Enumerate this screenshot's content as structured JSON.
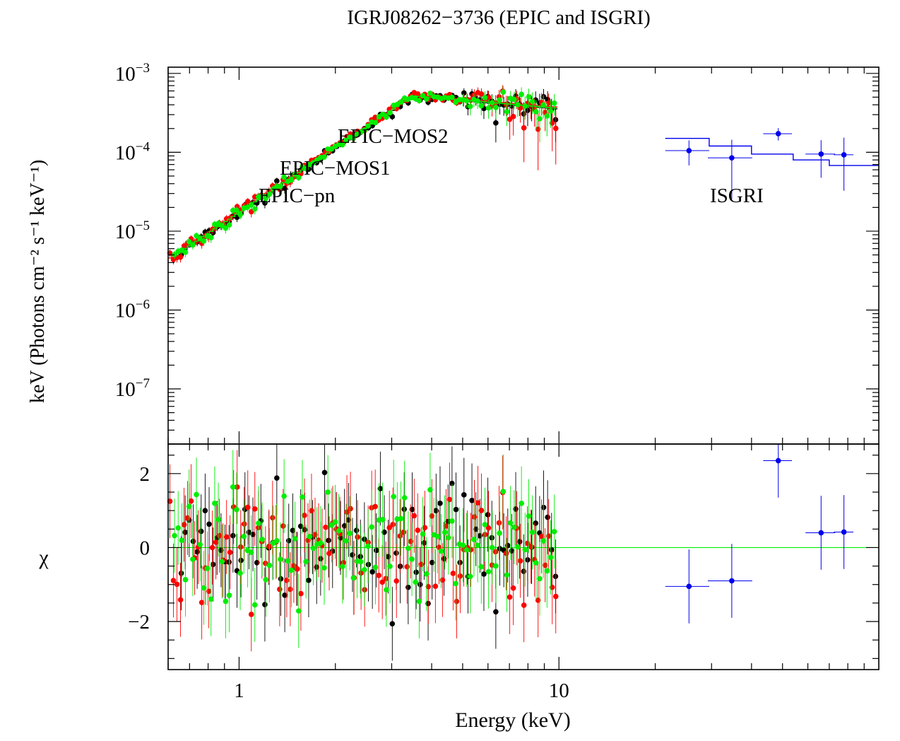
{
  "chart_data": {
    "type": "scatter",
    "title": "IGRJ08262−3736 (EPIC and ISGRI)",
    "xlabel": "Energy (keV)",
    "xscale": "log",
    "xlim": [
      0.6,
      100
    ],
    "x_tick_labels": [
      "1",
      "10"
    ],
    "top_panel": {
      "ylabel": "keV (Photons cm⁻² s⁻¹ keV⁻¹)",
      "yscale": "log",
      "ylim": [
        2e-08,
        0.0012
      ],
      "y_tick_labels": [
        {
          "base": "10",
          "exp": "−3"
        },
        {
          "base": "10",
          "exp": "−4"
        },
        {
          "base": "10",
          "exp": "−5"
        },
        {
          "base": "10",
          "exp": "−6"
        },
        {
          "base": "10",
          "exp": "−7"
        }
      ],
      "y_tick_values": [
        0.001,
        0.0001,
        1e-05,
        1e-06,
        1e-07
      ]
    },
    "bottom_panel": {
      "ylabel": "χ",
      "ylim": [
        -3.3,
        2.8
      ],
      "y_tick_labels": [
        "2",
        "0",
        "−2"
      ],
      "y_tick_values": [
        2,
        0,
        -2
      ],
      "zero_line": 0
    },
    "legend": {
      "epic_pn": "EPIC−pn",
      "epic_mos1": "EPIC−MOS1",
      "epic_mos2": "EPIC−MOS2",
      "isgri": "ISGRI"
    },
    "colors": {
      "epic_pn": "#000000",
      "epic_mos1": "#ff0000",
      "epic_mos2": "#00ee00",
      "isgri": "#0000ee"
    },
    "model": {
      "E_break": 3.5,
      "F_break": 0.00052,
      "slope_low": 2.72,
      "slope_high": -0.35
    },
    "series": [
      {
        "name": "EPIC-pn",
        "color": "#000000",
        "energy_range": [
          0.65,
          9.9
        ]
      },
      {
        "name": "EPIC-MOS1",
        "color": "#ff0000",
        "energy_range": [
          0.6,
          9.9
        ]
      },
      {
        "name": "EPIC-MOS2",
        "color": "#00ee00",
        "energy_range": [
          0.62,
          9.8
        ]
      },
      {
        "name": "ISGRI",
        "color": "#0000ee",
        "energy": [
          25.5,
          34.7,
          48.5,
          66.0,
          77.8
        ],
        "energy_err": [
          4.0,
          5.5,
          5.0,
          7.0,
          5.5
        ],
        "flux": [
          0.000105,
          8.5e-05,
          0.000172,
          9.5e-05,
          9.3e-05
        ],
        "flux_err_frac": [
          0.35,
          0.7,
          0.18,
          0.5,
          0.65
        ],
        "model_edges": [
          21.5,
          29.5,
          40.0,
          54.0,
          70.0,
          82.0,
          100
        ],
        "model_values": [
          0.00015,
          0.00012,
          9.5e-05,
          8e-05,
          6.8e-05,
          6.8e-05
        ],
        "residuals": [
          -1.05,
          -0.9,
          2.35,
          0.4,
          0.42
        ],
        "residual_err": [
          1.0,
          1.0,
          1.0,
          1.0,
          1.0
        ]
      }
    ]
  }
}
